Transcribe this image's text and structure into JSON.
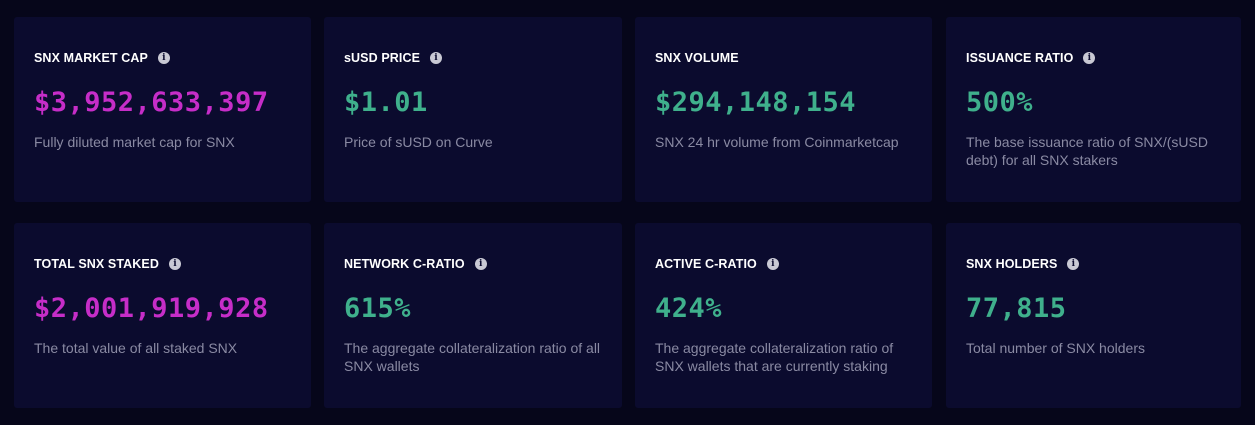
{
  "colors": {
    "background": "#06061a",
    "card": "#0b0b2e",
    "purple_value": "#c62dc8",
    "green_value": "#3fb08c",
    "description": "#8a8aa3"
  },
  "info_icon_glyph": "i",
  "cards": [
    {
      "title": "SNX MARKET CAP",
      "value": "$3,952,633,397",
      "description": "Fully diluted market cap for SNX",
      "value_color": "purple"
    },
    {
      "title": "sUSD PRICE",
      "value": "$1.01",
      "description": "Price of sUSD on Curve",
      "value_color": "green"
    },
    {
      "title": "SNX VOLUME",
      "value": "$294,148,154",
      "description": "SNX 24 hr volume from Coinmarketcap",
      "value_color": "green"
    },
    {
      "title": "ISSUANCE RATIO",
      "value": "500%",
      "description": "The base issuance ratio of SNX/(sUSD debt) for all SNX stakers",
      "value_color": "green"
    },
    {
      "title": "TOTAL SNX STAKED",
      "value": "$2,001,919,928",
      "description": "The total value of all staked SNX",
      "value_color": "purple"
    },
    {
      "title": "NETWORK C-RATIO",
      "value": "615%",
      "description": "The aggregate collateralization ratio of all SNX wallets",
      "value_color": "green"
    },
    {
      "title": "ACTIVE C-RATIO",
      "value": "424%",
      "description": "The aggregate collateralization ratio of SNX wallets that are currently staking",
      "value_color": "green"
    },
    {
      "title": "SNX HOLDERS",
      "value": "77,815",
      "description": "Total number of SNX holders",
      "value_color": "green"
    }
  ]
}
